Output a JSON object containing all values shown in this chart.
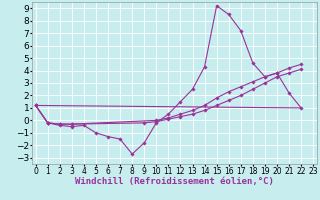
{
  "xlabel": "Windchill (Refroidissement éolien,°C)",
  "xlim": [
    -0.3,
    23.3
  ],
  "ylim": [
    -3.5,
    9.5
  ],
  "xticks": [
    0,
    1,
    2,
    3,
    4,
    5,
    6,
    7,
    8,
    9,
    10,
    11,
    12,
    13,
    14,
    15,
    16,
    17,
    18,
    19,
    20,
    21,
    22,
    23
  ],
  "yticks": [
    -3,
    -2,
    -1,
    0,
    1,
    2,
    3,
    4,
    5,
    6,
    7,
    8,
    9
  ],
  "background_color": "#c8edee",
  "grid_color": "#ffffff",
  "line_color": "#993399",
  "line1_x": [
    0,
    1,
    2,
    3,
    4,
    5,
    6,
    7,
    8,
    9,
    10,
    11,
    12,
    13,
    14,
    15,
    16,
    17,
    18,
    19,
    20,
    21,
    22
  ],
  "line1_y": [
    1.2,
    -0.2,
    -0.4,
    -0.5,
    -0.4,
    -1.0,
    -1.3,
    -1.5,
    -2.7,
    -1.8,
    -0.2,
    0.5,
    1.5,
    2.5,
    4.3,
    9.2,
    8.5,
    7.2,
    4.6,
    3.5,
    3.8,
    2.2,
    1.0
  ],
  "line2_x": [
    0,
    1,
    2,
    3,
    10,
    11,
    12,
    13,
    14,
    15,
    16,
    17,
    18,
    19,
    20,
    21,
    22
  ],
  "line2_y": [
    1.2,
    -0.2,
    -0.3,
    -0.3,
    0.0,
    0.2,
    0.5,
    0.8,
    1.2,
    1.8,
    2.3,
    2.7,
    3.1,
    3.5,
    3.8,
    4.2,
    4.5
  ],
  "line3_x": [
    0,
    22
  ],
  "line3_y": [
    1.2,
    1.0
  ],
  "line4_x": [
    0,
    1,
    2,
    3,
    9,
    10,
    11,
    12,
    13,
    14,
    15,
    16,
    17,
    18,
    19,
    20,
    21,
    22
  ],
  "line4_y": [
    1.2,
    -0.2,
    -0.3,
    -0.3,
    -0.2,
    -0.1,
    0.1,
    0.3,
    0.5,
    0.8,
    1.2,
    1.6,
    2.0,
    2.5,
    3.0,
    3.5,
    3.8,
    4.1
  ],
  "xlabel_fontsize": 6.5,
  "tick_fontsize_x": 5.5,
  "tick_fontsize_y": 6.5,
  "lw": 0.8,
  "ms": 1.8
}
